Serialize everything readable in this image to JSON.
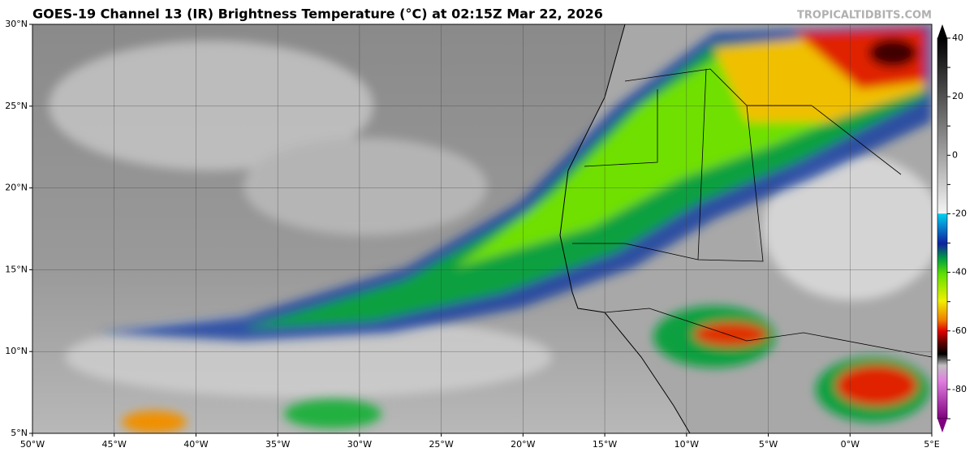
{
  "header": {
    "title": "GOES-19 Channel 13 (IR) Brightness Temperature (°C) at 02:15Z Mar 22, 2026",
    "credit": "TROPICALTIDBITS.COM"
  },
  "map": {
    "lonlim": [
      -50,
      5
    ],
    "latlim": [
      5,
      30
    ],
    "lon_ticks": [
      {
        "value": -50,
        "label": "50°W"
      },
      {
        "value": -45,
        "label": "45°W"
      },
      {
        "value": -40,
        "label": "40°W"
      },
      {
        "value": -35,
        "label": "35°W"
      },
      {
        "value": -30,
        "label": "30°W"
      },
      {
        "value": -25,
        "label": "25°W"
      },
      {
        "value": -20,
        "label": "20°W"
      },
      {
        "value": -15,
        "label": "15°W"
      },
      {
        "value": -10,
        "label": "10°W"
      },
      {
        "value": -5,
        "label": "5°W"
      },
      {
        "value": 0,
        "label": "0°W"
      },
      {
        "value": 5,
        "label": "5°E"
      }
    ],
    "lat_ticks": [
      {
        "value": 30,
        "label": "30°N"
      },
      {
        "value": 25,
        "label": "25°N"
      },
      {
        "value": 20,
        "label": "20°N"
      },
      {
        "value": 15,
        "label": "15°N"
      },
      {
        "value": 10,
        "label": "10°N"
      },
      {
        "value": 5,
        "label": "5°N"
      }
    ]
  },
  "colorbar": {
    "lim": [
      -90,
      40
    ],
    "ticks": [
      40,
      30,
      20,
      10,
      0,
      -10,
      -20,
      -30,
      -40,
      -50,
      -60,
      -70,
      -80,
      -90
    ]
  }
}
